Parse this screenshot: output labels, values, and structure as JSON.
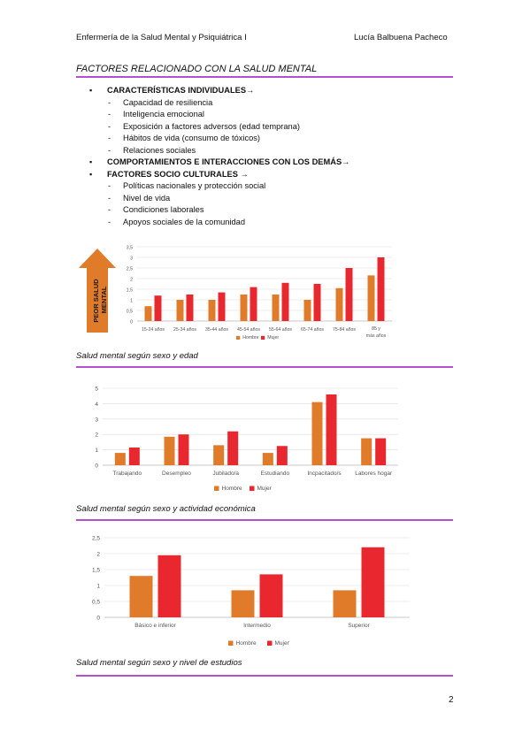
{
  "header": {
    "left": "Enfermería de la Salud Mental y Psiquiátrica I",
    "right": "Lucía Balbuena Pacheco"
  },
  "section_title": "FACTORES RELACIONADO CON LA SALUD MENTAL",
  "list": [
    {
      "kind": "main",
      "text": "CARACTERÍSTICAS INDIVIDUALES→"
    },
    {
      "kind": "sub",
      "text": "Capacidad de resiliencia"
    },
    {
      "kind": "sub",
      "text": "Inteligencia emocional"
    },
    {
      "kind": "sub",
      "text": "Exposición a factores adversos (edad temprana)"
    },
    {
      "kind": "sub",
      "text": "Hábitos de vida (consumo de tóxicos)"
    },
    {
      "kind": "sub",
      "text": "Relaciones sociales"
    },
    {
      "kind": "main",
      "text": "COMPORTAMIENTOS E INTERACCIONES CON LOS DEMÁS→"
    },
    {
      "kind": "main",
      "text": "FACTORES SOCIO CULTURALES →"
    },
    {
      "kind": "sub",
      "text": "Políticas nacionales y protección social"
    },
    {
      "kind": "sub",
      "text": "Nivel de vida"
    },
    {
      "kind": "sub",
      "text": "Condiciones laborales"
    },
    {
      "kind": "sub",
      "text": "Apoyos sociales de la comunidad"
    }
  ],
  "colors": {
    "hombre": "#e07b2a",
    "mujer": "#e8282e",
    "rule": "#b44fd0",
    "arrow": "#e07b2a"
  },
  "arrow_label": "PEOR SALUD MENTAL",
  "captions": {
    "chart1": "Salud mental según sexo y edad",
    "chart2": "Salud mental según sexo y actividad económica",
    "chart3": "Salud mental según sexo y nivel de estudios"
  },
  "page_number": "2",
  "chart_data": [
    {
      "type": "bar",
      "categories": [
        "15-24 años",
        "25-34 años",
        "35-44 años",
        "45-54 años",
        "55-64 años",
        "65-74 años",
        "75-84 años",
        "85 y más años"
      ],
      "series": [
        {
          "name": "Hombre",
          "values": [
            0.7,
            1.0,
            1.0,
            1.25,
            1.25,
            1.0,
            1.55,
            2.15
          ]
        },
        {
          "name": "Mujer",
          "values": [
            1.2,
            1.25,
            1.35,
            1.6,
            1.8,
            1.75,
            2.5,
            3.0
          ]
        }
      ],
      "yticks": [
        "0",
        "0,5",
        "1",
        "1,5",
        "2",
        "2,5",
        "3",
        "3,5"
      ],
      "ylim": [
        0,
        3.5
      ],
      "legend": "bottom"
    },
    {
      "type": "bar",
      "categories": [
        "Trabajando",
        "Desempleo",
        "Jubilado/a",
        "Estudiando",
        "Incpacitado/s",
        "Labores hogar"
      ],
      "series": [
        {
          "name": "Hombre",
          "values": [
            0.8,
            1.85,
            1.3,
            0.8,
            4.1,
            1.75
          ]
        },
        {
          "name": "Mujer",
          "values": [
            1.15,
            2.0,
            2.2,
            1.25,
            4.6,
            1.75
          ]
        }
      ],
      "yticks": [
        "0",
        "1",
        "2",
        "3",
        "4",
        "5"
      ],
      "ylim": [
        0,
        5
      ],
      "legend": "bottom"
    },
    {
      "type": "bar",
      "categories": [
        "Básico e inferior",
        "Intermedio",
        "Superior"
      ],
      "series": [
        {
          "name": "Hombre",
          "values": [
            1.3,
            0.85,
            0.85
          ]
        },
        {
          "name": "Mujer",
          "values": [
            1.95,
            1.35,
            2.2
          ]
        }
      ],
      "yticks": [
        "0",
        "0,5",
        "1",
        "1,5",
        "2",
        "2,5"
      ],
      "ylim": [
        0,
        2.5
      ],
      "legend": "bottom"
    }
  ]
}
